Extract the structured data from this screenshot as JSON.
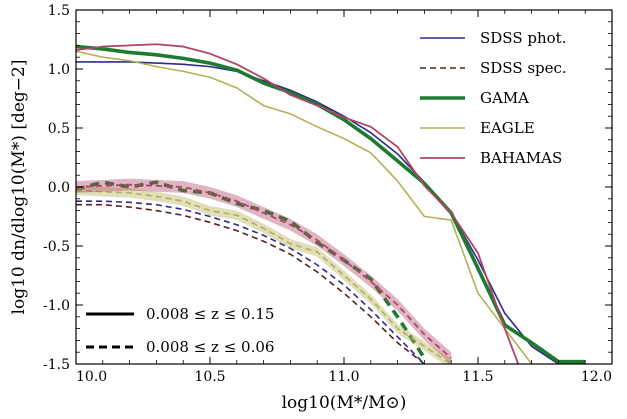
{
  "chart_data": {
    "type": "line",
    "xlabel": "log10(M*/M⊙)",
    "ylabel": "log10 dn/dlog10(M*) [deg−2]",
    "xlim": [
      10.0,
      12.0
    ],
    "ylim": [
      -1.5,
      1.5
    ],
    "x_ticks": [
      "10.0",
      "10.5",
      "11.0",
      "11.5",
      "12.0"
    ],
    "y_ticks": [
      "1.5",
      "1.0",
      "0.5",
      "0.0",
      "-0.5",
      "-1.0",
      "-1.5"
    ],
    "grid": false,
    "legend_position": "top-right",
    "series": [
      {
        "name": "SDSS phot.",
        "color": "#2e2b8c",
        "linestyle": "solid",
        "width": 1.6,
        "legend": true,
        "x": [
          10.0,
          10.1,
          10.2,
          10.3,
          10.4,
          10.5,
          10.6,
          10.7,
          10.8,
          10.9,
          11.0,
          11.1,
          11.2,
          11.3,
          11.4,
          11.5,
          11.6,
          11.7,
          11.8
        ],
        "y": [
          1.06,
          1.06,
          1.06,
          1.05,
          1.04,
          1.02,
          0.98,
          0.9,
          0.82,
          0.72,
          0.6,
          0.46,
          0.28,
          0.04,
          -0.22,
          -0.62,
          -1.07,
          -1.35,
          -1.5
        ]
      },
      {
        "name": "GAMA",
        "color": "#1d7a2e",
        "linestyle": "solid",
        "width": 3.6,
        "legend": true,
        "x": [
          10.0,
          10.1,
          10.2,
          10.3,
          10.4,
          10.5,
          10.6,
          10.7,
          10.8,
          10.9,
          11.0,
          11.1,
          11.2,
          11.3,
          11.4,
          11.5,
          11.6,
          11.7,
          11.8,
          11.9
        ],
        "y": [
          1.19,
          1.17,
          1.14,
          1.12,
          1.09,
          1.05,
          0.99,
          0.88,
          0.8,
          0.7,
          0.57,
          0.41,
          0.22,
          0.03,
          -0.22,
          -0.69,
          -1.17,
          -1.32,
          -1.48,
          -1.48
        ]
      },
      {
        "name": "EAGLE",
        "color": "#b4b056",
        "linestyle": "solid",
        "width": 1.6,
        "legend": true,
        "x": [
          10.0,
          10.1,
          10.2,
          10.3,
          10.4,
          10.5,
          10.6,
          10.7,
          10.8,
          10.9,
          11.0,
          11.1,
          11.2,
          11.3,
          11.4,
          11.5,
          11.6,
          11.7
        ],
        "y": [
          1.15,
          1.1,
          1.07,
          1.02,
          0.98,
          0.93,
          0.84,
          0.69,
          0.62,
          0.51,
          0.41,
          0.29,
          0.05,
          -0.25,
          -0.28,
          -0.9,
          -1.2,
          -1.5
        ]
      },
      {
        "name": "BAHAMAS",
        "color": "#b04567",
        "linestyle": "solid",
        "width": 1.8,
        "legend": true,
        "x": [
          10.0,
          10.1,
          10.2,
          10.3,
          10.4,
          10.5,
          10.6,
          10.7,
          10.8,
          10.9,
          11.0,
          11.1,
          11.2,
          11.3,
          11.4,
          11.5,
          11.6,
          11.65
        ],
        "y": [
          1.16,
          1.19,
          1.2,
          1.21,
          1.19,
          1.13,
          1.04,
          0.92,
          0.78,
          0.69,
          0.59,
          0.51,
          0.34,
          0.01,
          -0.22,
          -0.56,
          -1.2,
          -1.5
        ]
      },
      {
        "name": "SDSS spec.",
        "color": "#5a1f1f",
        "linestyle": "dashed",
        "width": 1.6,
        "legend": true,
        "x": [
          10.0,
          10.1,
          10.2,
          10.3,
          10.4,
          10.5,
          10.6,
          10.7,
          10.8,
          10.9,
          11.0,
          11.1,
          11.2,
          11.3
        ],
        "y": [
          -0.15,
          -0.15,
          -0.17,
          -0.2,
          -0.24,
          -0.3,
          -0.37,
          -0.46,
          -0.57,
          -0.72,
          -0.9,
          -1.1,
          -1.32,
          -1.5
        ]
      },
      {
        "name": "",
        "color": "#2e2b8c",
        "linestyle": "dashed",
        "width": 1.6,
        "legend": false,
        "x": [
          10.0,
          10.1,
          10.2,
          10.3,
          10.4,
          10.5,
          10.6,
          10.7,
          10.8,
          10.9,
          11.0,
          11.1,
          11.2,
          11.3
        ],
        "y": [
          -0.12,
          -0.12,
          -0.13,
          -0.15,
          -0.19,
          -0.25,
          -0.32,
          -0.41,
          -0.52,
          -0.66,
          -0.83,
          -1.04,
          -1.27,
          -1.5
        ]
      },
      {
        "name": "",
        "color": "#1d7a2e",
        "linestyle": "dashed",
        "width": 3.6,
        "legend": false,
        "x": [
          10.0,
          10.1,
          10.2,
          10.3,
          10.4,
          10.5,
          10.6,
          10.7,
          10.8,
          10.9,
          11.0,
          11.1,
          11.2,
          11.3
        ],
        "y": [
          -0.02,
          0.04,
          0.0,
          0.04,
          -0.03,
          -0.05,
          -0.14,
          -0.2,
          -0.29,
          -0.47,
          -0.62,
          -0.78,
          -1.1,
          -1.45
        ]
      },
      {
        "name": "",
        "color": "#b4b056",
        "linestyle": "dashed",
        "width": 1.6,
        "legend": false,
        "band": 0.04,
        "x": [
          10.0,
          10.1,
          10.2,
          10.3,
          10.4,
          10.5,
          10.6,
          10.7,
          10.8,
          10.9,
          11.0,
          11.1,
          11.2,
          11.3,
          11.4
        ],
        "y": [
          -0.03,
          -0.04,
          -0.05,
          -0.08,
          -0.12,
          -0.2,
          -0.24,
          -0.35,
          -0.48,
          -0.55,
          -0.75,
          -0.95,
          -1.2,
          -1.35,
          -1.5
        ]
      },
      {
        "name": "",
        "color": "#b04567",
        "linestyle": "dashed",
        "width": 1.8,
        "legend": false,
        "band": 0.05,
        "x": [
          10.0,
          10.1,
          10.2,
          10.3,
          10.4,
          10.5,
          10.6,
          10.7,
          10.8,
          10.9,
          11.0,
          11.1,
          11.2,
          11.3,
          11.4
        ],
        "y": [
          0.0,
          0.01,
          0.02,
          0.01,
          0.0,
          -0.05,
          -0.12,
          -0.22,
          -0.32,
          -0.45,
          -0.62,
          -0.8,
          -1.0,
          -1.25,
          -1.45
        ]
      }
    ],
    "redshift_legend": [
      {
        "style": "solid",
        "label": "0.008 ≤ z ≤ 0.15"
      },
      {
        "style": "dashed",
        "label": "0.008 ≤ z ≤ 0.06"
      }
    ]
  }
}
